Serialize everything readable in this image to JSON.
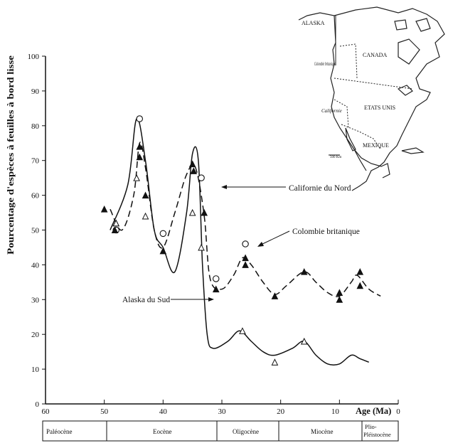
{
  "chart_data": {
    "type": "line",
    "xlabel": "Age (Ma)",
    "ylabel": "Pourcentage d'espèces à feuilles à bord lisse",
    "xlim": [
      60,
      0
    ],
    "ylim": [
      0,
      100
    ],
    "x_ticks": [
      60,
      50,
      40,
      30,
      20,
      10,
      0
    ],
    "x_tick_labels": [
      "60",
      "50",
      "40",
      "30",
      "20",
      "10",
      "0"
    ],
    "y_ticks": [
      0,
      10,
      20,
      30,
      40,
      50,
      60,
      70,
      80,
      90,
      100
    ],
    "y_tick_labels": [
      "0",
      "10",
      "20",
      "30",
      "40",
      "50",
      "60",
      "70",
      "80",
      "90",
      "100"
    ],
    "grid": false,
    "series": [
      {
        "name": "Californie du Nord",
        "style": "solid",
        "marker": "open-circle",
        "curve": [
          [
            49,
            50
          ],
          [
            46,
            63
          ],
          [
            44.5,
            82
          ],
          [
            43,
            70
          ],
          [
            41.5,
            50
          ],
          [
            40,
            45
          ],
          [
            38,
            38
          ],
          [
            36,
            55
          ],
          [
            35,
            72
          ],
          [
            34,
            70
          ],
          [
            33.3,
            40
          ],
          [
            32.5,
            20
          ],
          [
            31.5,
            16
          ],
          [
            29,
            18
          ],
          [
            27,
            21
          ],
          [
            25,
            18
          ],
          [
            23,
            15
          ],
          [
            21,
            14
          ],
          [
            18,
            16
          ],
          [
            16,
            18
          ],
          [
            14,
            14
          ],
          [
            12,
            11.5
          ],
          [
            10,
            11.5
          ],
          [
            8,
            14
          ],
          [
            6.5,
            13
          ],
          [
            5,
            12
          ]
        ],
        "points": [
          [
            48,
            50
          ],
          [
            44,
            82
          ],
          [
            40,
            49
          ],
          [
            33.5,
            65
          ],
          [
            31,
            36
          ],
          [
            26,
            46
          ]
        ]
      },
      {
        "name": "Colombie britanique",
        "style": "dashed",
        "marker": "filled-triangle",
        "curve": [
          [
            49,
            56
          ],
          [
            47,
            50
          ],
          [
            45,
            60
          ],
          [
            44,
            75
          ],
          [
            43,
            68
          ],
          [
            41.5,
            50
          ],
          [
            40,
            45
          ],
          [
            38,
            55
          ],
          [
            36,
            66
          ],
          [
            34.5,
            68
          ],
          [
            33,
            54
          ],
          [
            32,
            36
          ],
          [
            30,
            33
          ],
          [
            28,
            37
          ],
          [
            26.5,
            42
          ],
          [
            25,
            40
          ],
          [
            23,
            35
          ],
          [
            21,
            31.5
          ],
          [
            19,
            34
          ],
          [
            16,
            38
          ],
          [
            14,
            35
          ],
          [
            12,
            32
          ],
          [
            10,
            31
          ],
          [
            8,
            35
          ],
          [
            7,
            37
          ],
          [
            5,
            33
          ],
          [
            3,
            31
          ]
        ],
        "points": [
          [
            50,
            56
          ],
          [
            48,
            52
          ],
          [
            48.2,
            50
          ],
          [
            44,
            74
          ],
          [
            44,
            71
          ],
          [
            43,
            60
          ],
          [
            40,
            44
          ],
          [
            35,
            69
          ],
          [
            34.8,
            67
          ],
          [
            33,
            55
          ],
          [
            31,
            33
          ],
          [
            26,
            40
          ],
          [
            26,
            42
          ],
          [
            21,
            31
          ],
          [
            16,
            38
          ],
          [
            10,
            32
          ],
          [
            10,
            30
          ],
          [
            6.5,
            38
          ],
          [
            6.5,
            34
          ]
        ]
      },
      {
        "name": "Alaska du Sud",
        "style": "none",
        "marker": "open-triangle",
        "points": [
          [
            48,
            52
          ],
          [
            44.5,
            65
          ],
          [
            43,
            54
          ],
          [
            35,
            55
          ],
          [
            33.5,
            45
          ],
          [
            26.5,
            21
          ],
          [
            21,
            12
          ],
          [
            16,
            18
          ]
        ]
      }
    ],
    "annotations": [
      "Californie du Nord",
      "Colombie britanique",
      "Alaska du Sud"
    ],
    "epochs": [
      "Paléocène",
      "Eocène",
      "Oligocène",
      "Miocène",
      "Plio-\nPléistocène"
    ],
    "map_labels": [
      "ALASKA",
      "CANADA",
      "Colombie britanique",
      "ETATS UNIS",
      "Californie",
      "MEXIQUE",
      "500 Km"
    ]
  }
}
